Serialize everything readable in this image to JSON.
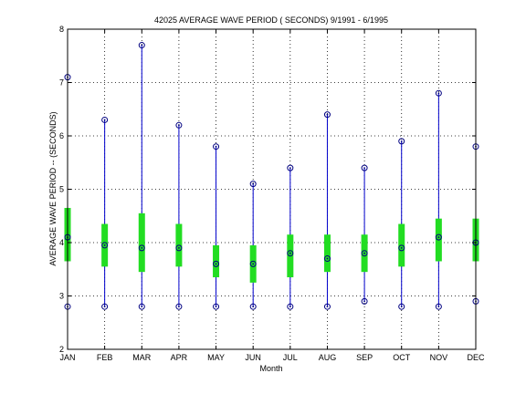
{
  "chart_data": {
    "type": "box",
    "title": "42025  AVERAGE WAVE PERIOD ( SECONDS) 9/1991 - 6/1995",
    "xlabel": "Month",
    "ylabel": "AVERAGE WAVE PERIOD -- (SECONDS)",
    "ylim": [
      2,
      8
    ],
    "yticks": [
      2,
      3,
      4,
      5,
      6,
      7,
      8
    ],
    "grid": true,
    "categories": [
      "JAN",
      "FEB",
      "MAR",
      "APR",
      "MAY",
      "JUN",
      "JUL",
      "AUG",
      "SEP",
      "OCT",
      "NOV",
      "DEC"
    ],
    "min": [
      2.8,
      2.8,
      2.8,
      2.8,
      2.8,
      2.8,
      2.8,
      2.8,
      2.9,
      2.8,
      2.8,
      2.9
    ],
    "max": [
      7.1,
      6.3,
      7.7,
      6.2,
      5.8,
      5.1,
      5.4,
      6.4,
      5.4,
      5.9,
      6.8,
      5.8
    ],
    "mean": [
      4.1,
      3.95,
      3.9,
      3.9,
      3.6,
      3.6,
      3.8,
      3.7,
      3.8,
      3.9,
      4.1,
      4.0
    ],
    "q_low": [
      3.65,
      3.55,
      3.45,
      3.55,
      3.35,
      3.25,
      3.35,
      3.45,
      3.45,
      3.55,
      3.65,
      3.65
    ],
    "q_high": [
      4.65,
      4.35,
      4.55,
      4.35,
      3.95,
      3.95,
      4.15,
      4.15,
      4.15,
      4.35,
      4.45,
      4.45
    ],
    "colors": {
      "range": "#0000cc",
      "box": "#22dd22",
      "marker": "#000080",
      "grid": "#000000"
    }
  }
}
